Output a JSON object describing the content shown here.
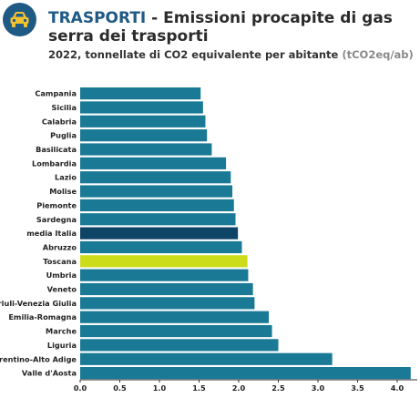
{
  "header": {
    "icon": "car-icon",
    "category": "TRASPORTI",
    "separator": " - ",
    "title": "Emissioni procapite di gas serra dei trasporti",
    "subtitle": "2022, tonnellate di CO2 equivalente per abitante",
    "unit": "(tCO2eq/ab)"
  },
  "colors": {
    "accent": "#1f5a85",
    "bar": "#1a7a96",
    "average": "#0e4466",
    "highlight": "#cddc1a"
  },
  "chart_data": {
    "type": "bar",
    "orientation": "horizontal",
    "title": "",
    "xlabel": "",
    "ylabel": "",
    "xlim": [
      0,
      4.2
    ],
    "ticks": [
      "0.0",
      "0.5",
      "1.0",
      "1.5",
      "2.0",
      "2.5",
      "3.0",
      "3.5",
      "4.0"
    ],
    "grid": false,
    "legend": "none",
    "categories": [
      "Campania",
      "Sicilia",
      "Calabria",
      "Puglia",
      "Basilicata",
      "Lombardia",
      "Lazio",
      "Molise",
      "Piemonte",
      "Sardegna",
      "media Italia",
      "Abruzzo",
      "Toscana",
      "Umbria",
      "Veneto",
      "Friuli-Venezia Giulia",
      "Emilia-Romagna",
      "Marche",
      "Liguria",
      "Trentino-Alto Adige",
      "Valle d'Aosta"
    ],
    "values": [
      1.52,
      1.55,
      1.58,
      1.6,
      1.66,
      1.84,
      1.9,
      1.92,
      1.94,
      1.96,
      1.99,
      2.04,
      2.11,
      2.12,
      2.18,
      2.2,
      2.38,
      2.42,
      2.5,
      3.18,
      4.17
    ],
    "highlight": {
      "Toscana": "highlight",
      "media Italia": "average"
    }
  }
}
